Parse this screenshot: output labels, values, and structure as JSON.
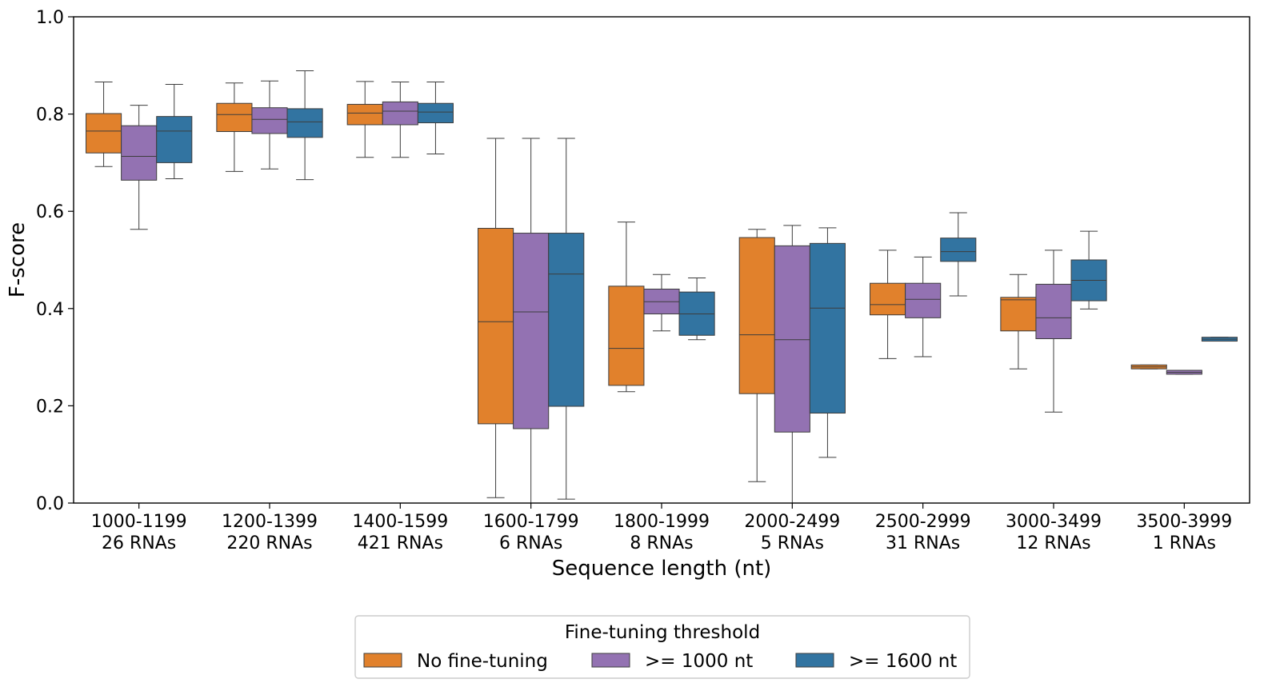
{
  "chart_data": {
    "type": "box",
    "title": "",
    "xlabel": "Sequence length (nt)",
    "ylabel": "F-score",
    "ylim": [
      0.0,
      1.0
    ],
    "yticks": [
      "0.0",
      "0.2",
      "0.4",
      "0.6",
      "0.8",
      "1.0"
    ],
    "grid": false,
    "legend": {
      "title": "Fine-tuning threshold",
      "placement": "bottom-center-outside"
    },
    "categories": [
      {
        "range": "1000-1199",
        "count": "26 RNAs"
      },
      {
        "range": "1200-1399",
        "count": "220 RNAs"
      },
      {
        "range": "1400-1599",
        "count": "421 RNAs"
      },
      {
        "range": "1600-1799",
        "count": "6 RNAs"
      },
      {
        "range": "1800-1999",
        "count": "8 RNAs"
      },
      {
        "range": "2000-2499",
        "count": "5 RNAs"
      },
      {
        "range": "2500-2999",
        "count": "31 RNAs"
      },
      {
        "range": "3000-3499",
        "count": "12 RNAs"
      },
      {
        "range": "3500-3999",
        "count": "1 RNAs"
      }
    ],
    "series": [
      {
        "name": "No fine-tuning",
        "color": "#e1812c",
        "boxes": [
          {
            "whislo": 0.692,
            "q1": 0.72,
            "med": 0.765,
            "q3": 0.801,
            "whishi": 0.866
          },
          {
            "whislo": 0.682,
            "q1": 0.764,
            "med": 0.799,
            "q3": 0.822,
            "whishi": 0.864
          },
          {
            "whislo": 0.711,
            "q1": 0.778,
            "med": 0.802,
            "q3": 0.82,
            "whishi": 0.867
          },
          {
            "whislo": 0.011,
            "q1": 0.163,
            "med": 0.373,
            "q3": 0.565,
            "whishi": 0.75
          },
          {
            "whislo": 0.229,
            "q1": 0.242,
            "med": 0.318,
            "q3": 0.446,
            "whishi": 0.578
          },
          {
            "whislo": 0.044,
            "q1": 0.225,
            "med": 0.346,
            "q3": 0.546,
            "whishi": 0.563
          },
          {
            "whislo": 0.297,
            "q1": 0.387,
            "med": 0.408,
            "q3": 0.452,
            "whishi": 0.52
          },
          {
            "whislo": 0.276,
            "q1": 0.354,
            "med": 0.418,
            "q3": 0.423,
            "whishi": 0.47
          },
          {
            "whislo": 0.276,
            "q1": 0.276,
            "med": 0.28,
            "q3": 0.284,
            "whishi": 0.284
          }
        ]
      },
      {
        "name": ">= 1000 nt",
        "color": "#9372b2",
        "boxes": [
          {
            "whislo": 0.563,
            "q1": 0.664,
            "med": 0.713,
            "q3": 0.776,
            "whishi": 0.818
          },
          {
            "whislo": 0.687,
            "q1": 0.76,
            "med": 0.789,
            "q3": 0.813,
            "whishi": 0.868
          },
          {
            "whislo": 0.711,
            "q1": 0.778,
            "med": 0.806,
            "q3": 0.825,
            "whishi": 0.866
          },
          {
            "whislo": 0.0,
            "q1": 0.153,
            "med": 0.393,
            "q3": 0.555,
            "whishi": 0.75
          },
          {
            "whislo": 0.354,
            "q1": 0.389,
            "med": 0.414,
            "q3": 0.44,
            "whishi": 0.47
          },
          {
            "whislo": 0.0,
            "q1": 0.146,
            "med": 0.336,
            "q3": 0.529,
            "whishi": 0.571
          },
          {
            "whislo": 0.301,
            "q1": 0.381,
            "med": 0.419,
            "q3": 0.452,
            "whishi": 0.506
          },
          {
            "whislo": 0.187,
            "q1": 0.338,
            "med": 0.381,
            "q3": 0.45,
            "whishi": 0.52
          },
          {
            "whislo": 0.265,
            "q1": 0.265,
            "med": 0.269,
            "q3": 0.273,
            "whishi": 0.273
          }
        ]
      },
      {
        "name": ">= 1600 nt",
        "color": "#3274a1",
        "boxes": [
          {
            "whislo": 0.667,
            "q1": 0.7,
            "med": 0.765,
            "q3": 0.795,
            "whishi": 0.861
          },
          {
            "whislo": 0.665,
            "q1": 0.752,
            "med": 0.784,
            "q3": 0.811,
            "whishi": 0.889
          },
          {
            "whislo": 0.718,
            "q1": 0.782,
            "med": 0.804,
            "q3": 0.822,
            "whishi": 0.866
          },
          {
            "whislo": 0.008,
            "q1": 0.199,
            "med": 0.471,
            "q3": 0.555,
            "whishi": 0.75
          },
          {
            "whislo": 0.336,
            "q1": 0.345,
            "med": 0.389,
            "q3": 0.434,
            "whishi": 0.463
          },
          {
            "whislo": 0.094,
            "q1": 0.185,
            "med": 0.401,
            "q3": 0.534,
            "whishi": 0.566
          },
          {
            "whislo": 0.426,
            "q1": 0.497,
            "med": 0.517,
            "q3": 0.545,
            "whishi": 0.597
          },
          {
            "whislo": 0.399,
            "q1": 0.416,
            "med": 0.458,
            "q3": 0.5,
            "whishi": 0.559
          },
          {
            "whislo": 0.333,
            "q1": 0.333,
            "med": 0.337,
            "q3": 0.341,
            "whishi": 0.341
          }
        ]
      }
    ]
  }
}
